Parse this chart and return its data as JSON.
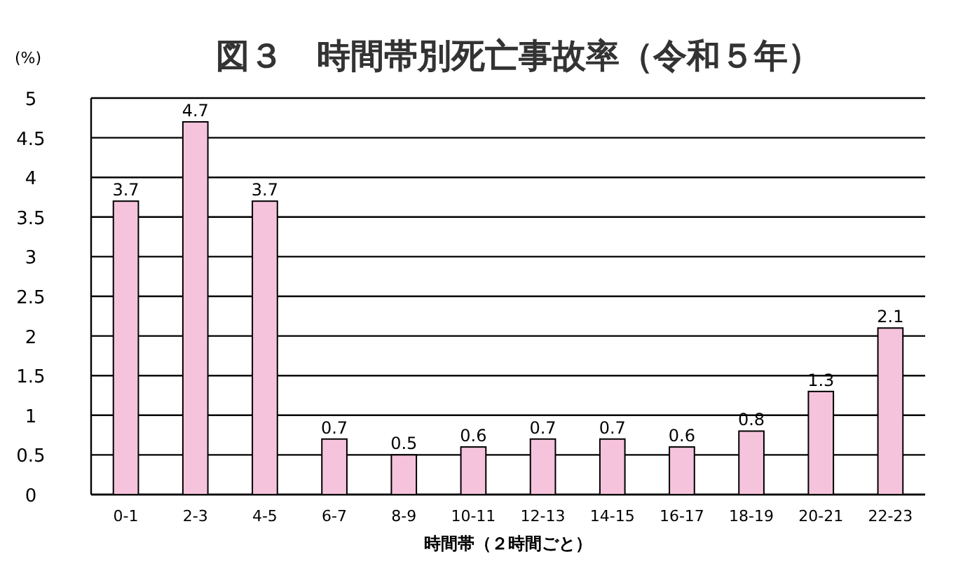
{
  "chart_data": {
    "type": "bar",
    "title": "図３　時間帯別死亡事故率（令和５年）",
    "ylabel": "(%)",
    "xlabel": "時間帯（２時間ごと）",
    "categories": [
      "0-1",
      "2-3",
      "4-5",
      "6-7",
      "8-9",
      "10-11",
      "12-13",
      "14-15",
      "16-17",
      "18-19",
      "20-21",
      "22-23"
    ],
    "values": [
      3.7,
      4.7,
      3.7,
      0.7,
      0.5,
      0.6,
      0.7,
      0.7,
      0.6,
      0.8,
      1.3,
      2.1
    ],
    "color": "#f6c3dc",
    "ylim": [
      0,
      5
    ],
    "yticks": [
      0,
      0.5,
      1,
      1.5,
      2,
      2.5,
      3,
      3.5,
      4,
      4.5,
      5
    ],
    "grid": "y",
    "data_labels": true
  }
}
